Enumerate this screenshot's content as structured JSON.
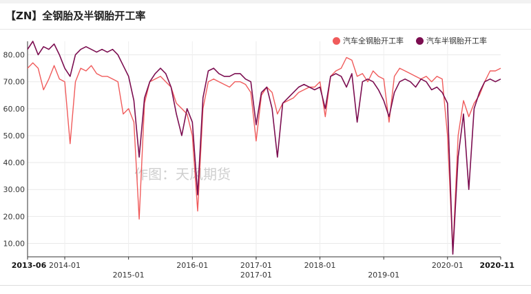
{
  "chart_data": {
    "type": "line",
    "title": "【ZN】全钢胎及半钢胎开工率",
    "watermark": "作图：天风期货",
    "xlabel": "",
    "ylabel": "",
    "ylim": [
      5,
      85
    ],
    "yticks": [
      "10.00",
      "20.00",
      "30.00",
      "40.00",
      "50.00",
      "60.00",
      "70.00",
      "80.00"
    ],
    "xrange": [
      "2013-06",
      "2020-11"
    ],
    "xticks_row1": [
      "2013-06",
      "2014-01",
      "2016-01",
      "2017-01",
      "2018-01",
      "2020-01",
      "2020-11"
    ],
    "xticks_row2": [
      "2015-01",
      "2017-01",
      "2019-01"
    ],
    "grid": true,
    "legend_position": "top-right",
    "series": [
      {
        "name": "汽车全钢胎开工率",
        "color": "#f05b5b",
        "points": [
          [
            "2013-06",
            75
          ],
          [
            "2013-07",
            77
          ],
          [
            "2013-08",
            75
          ],
          [
            "2013-09",
            67
          ],
          [
            "2013-10",
            71
          ],
          [
            "2013-11",
            76
          ],
          [
            "2013-12",
            71
          ],
          [
            "2014-01",
            70
          ],
          [
            "2014-02",
            47
          ],
          [
            "2014-03",
            70
          ],
          [
            "2014-04",
            75
          ],
          [
            "2014-05",
            74
          ],
          [
            "2014-06",
            76
          ],
          [
            "2014-07",
            73
          ],
          [
            "2014-08",
            72
          ],
          [
            "2014-09",
            72
          ],
          [
            "2014-10",
            71
          ],
          [
            "2014-11",
            70
          ],
          [
            "2014-12",
            58
          ],
          [
            "2015-01",
            60
          ],
          [
            "2015-02",
            55
          ],
          [
            "2015-03",
            19
          ],
          [
            "2015-04",
            62
          ],
          [
            "2015-05",
            70
          ],
          [
            "2015-06",
            71
          ],
          [
            "2015-07",
            72
          ],
          [
            "2015-08",
            70
          ],
          [
            "2015-09",
            68
          ],
          [
            "2015-10",
            62
          ],
          [
            "2015-11",
            60
          ],
          [
            "2015-12",
            58
          ],
          [
            "2016-01",
            50
          ],
          [
            "2016-02",
            22
          ],
          [
            "2016-03",
            60
          ],
          [
            "2016-04",
            70
          ],
          [
            "2016-05",
            71
          ],
          [
            "2016-06",
            70
          ],
          [
            "2016-07",
            69
          ],
          [
            "2016-08",
            68
          ],
          [
            "2016-09",
            70
          ],
          [
            "2016-10",
            70
          ],
          [
            "2016-11",
            69
          ],
          [
            "2016-12",
            66
          ],
          [
            "2017-01",
            48
          ],
          [
            "2017-02",
            65
          ],
          [
            "2017-03",
            68
          ],
          [
            "2017-04",
            66
          ],
          [
            "2017-05",
            58
          ],
          [
            "2017-06",
            62
          ],
          [
            "2017-07",
            63
          ],
          [
            "2017-08",
            64
          ],
          [
            "2017-09",
            66
          ],
          [
            "2017-10",
            67
          ],
          [
            "2017-11",
            68
          ],
          [
            "2017-12",
            68
          ],
          [
            "2018-01",
            70
          ],
          [
            "2018-02",
            57
          ],
          [
            "2018-03",
            72
          ],
          [
            "2018-04",
            74
          ],
          [
            "2018-05",
            75
          ],
          [
            "2018-06",
            79
          ],
          [
            "2018-07",
            78
          ],
          [
            "2018-08",
            72
          ],
          [
            "2018-09",
            73
          ],
          [
            "2018-10",
            70
          ],
          [
            "2018-11",
            74
          ],
          [
            "2018-12",
            72
          ],
          [
            "2019-01",
            71
          ],
          [
            "2019-02",
            55
          ],
          [
            "2019-03",
            72
          ],
          [
            "2019-04",
            75
          ],
          [
            "2019-05",
            74
          ],
          [
            "2019-06",
            73
          ],
          [
            "2019-07",
            72
          ],
          [
            "2019-08",
            71
          ],
          [
            "2019-09",
            72
          ],
          [
            "2019-10",
            70
          ],
          [
            "2019-11",
            72
          ],
          [
            "2019-12",
            71
          ],
          [
            "2020-01",
            50
          ],
          [
            "2020-02",
            7
          ],
          [
            "2020-03",
            50
          ],
          [
            "2020-04",
            63
          ],
          [
            "2020-05",
            57
          ],
          [
            "2020-06",
            62
          ],
          [
            "2020-07",
            65
          ],
          [
            "2020-08",
            70
          ],
          [
            "2020-09",
            74
          ],
          [
            "2020-10",
            74
          ],
          [
            "2020-11",
            75
          ]
        ]
      },
      {
        "name": "汽车半钢胎开工率",
        "color": "#7b0d50",
        "points": [
          [
            "2013-06",
            82
          ],
          [
            "2013-07",
            85
          ],
          [
            "2013-08",
            80
          ],
          [
            "2013-09",
            83
          ],
          [
            "2013-10",
            82
          ],
          [
            "2013-11",
            84
          ],
          [
            "2013-12",
            80
          ],
          [
            "2014-01",
            75
          ],
          [
            "2014-02",
            72
          ],
          [
            "2014-03",
            80
          ],
          [
            "2014-04",
            82
          ],
          [
            "2014-05",
            83
          ],
          [
            "2014-06",
            82
          ],
          [
            "2014-07",
            81
          ],
          [
            "2014-08",
            82
          ],
          [
            "2014-09",
            81
          ],
          [
            "2014-10",
            82
          ],
          [
            "2014-11",
            80
          ],
          [
            "2014-12",
            76
          ],
          [
            "2015-01",
            72
          ],
          [
            "2015-02",
            63
          ],
          [
            "2015-03",
            42
          ],
          [
            "2015-04",
            64
          ],
          [
            "2015-05",
            70
          ],
          [
            "2015-06",
            73
          ],
          [
            "2015-07",
            75
          ],
          [
            "2015-08",
            73
          ],
          [
            "2015-09",
            68
          ],
          [
            "2015-10",
            58
          ],
          [
            "2015-11",
            50
          ],
          [
            "2015-12",
            60
          ],
          [
            "2016-01",
            55
          ],
          [
            "2016-02",
            28
          ],
          [
            "2016-03",
            64
          ],
          [
            "2016-04",
            74
          ],
          [
            "2016-05",
            75
          ],
          [
            "2016-06",
            73
          ],
          [
            "2016-07",
            72
          ],
          [
            "2016-08",
            72
          ],
          [
            "2016-09",
            73
          ],
          [
            "2016-10",
            73
          ],
          [
            "2016-11",
            71
          ],
          [
            "2016-12",
            70
          ],
          [
            "2017-01",
            54
          ],
          [
            "2017-02",
            66
          ],
          [
            "2017-03",
            68
          ],
          [
            "2017-04",
            60
          ],
          [
            "2017-05",
            42
          ],
          [
            "2017-06",
            62
          ],
          [
            "2017-07",
            64
          ],
          [
            "2017-08",
            66
          ],
          [
            "2017-09",
            68
          ],
          [
            "2017-10",
            69
          ],
          [
            "2017-11",
            68
          ],
          [
            "2017-12",
            67
          ],
          [
            "2018-01",
            68
          ],
          [
            "2018-02",
            60
          ],
          [
            "2018-03",
            72
          ],
          [
            "2018-04",
            73
          ],
          [
            "2018-05",
            72
          ],
          [
            "2018-06",
            68
          ],
          [
            "2018-07",
            73
          ],
          [
            "2018-08",
            55
          ],
          [
            "2018-09",
            70
          ],
          [
            "2018-10",
            71
          ],
          [
            "2018-11",
            70
          ],
          [
            "2018-12",
            67
          ],
          [
            "2019-01",
            63
          ],
          [
            "2019-02",
            57
          ],
          [
            "2019-03",
            66
          ],
          [
            "2019-04",
            70
          ],
          [
            "2019-05",
            71
          ],
          [
            "2019-06",
            70
          ],
          [
            "2019-07",
            68
          ],
          [
            "2019-08",
            71
          ],
          [
            "2019-09",
            70
          ],
          [
            "2019-10",
            67
          ],
          [
            "2019-11",
            68
          ],
          [
            "2019-12",
            66
          ],
          [
            "2020-01",
            62
          ],
          [
            "2020-02",
            6
          ],
          [
            "2020-03",
            42
          ],
          [
            "2020-04",
            58
          ],
          [
            "2020-05",
            30
          ],
          [
            "2020-06",
            60
          ],
          [
            "2020-07",
            66
          ],
          [
            "2020-08",
            70
          ],
          [
            "2020-09",
            71
          ],
          [
            "2020-10",
            70
          ],
          [
            "2020-11",
            71
          ]
        ]
      }
    ]
  }
}
